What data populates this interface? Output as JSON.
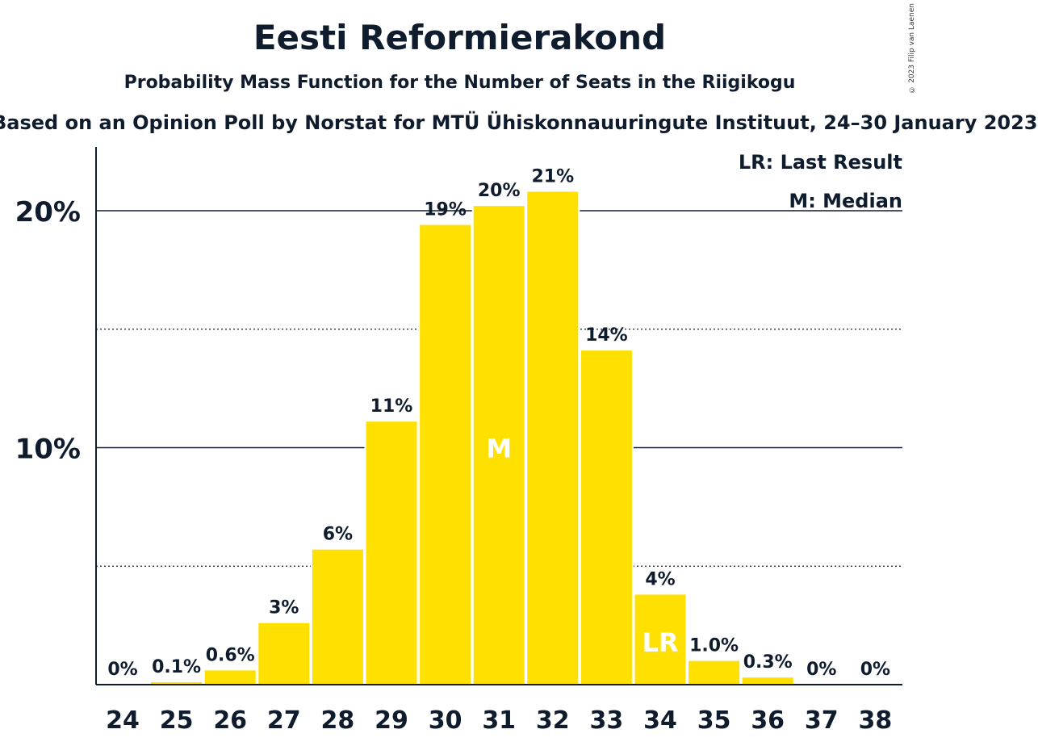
{
  "header": {
    "title": "Eesti Reformierakond",
    "subtitle": "Probability Mass Function for the Number of Seats in the Riigikogu",
    "source": "Based on an Opinion Poll by Norstat for MTÜ Ühiskonnauuringute Instituut, 24–30 January 2023",
    "copyright": "© 2023 Filip van Laenen"
  },
  "legend": {
    "last_result": "LR: Last Result",
    "median": "M: Median"
  },
  "colors": {
    "bar": "#ffe000",
    "text": "#0f1c2e",
    "marker_text": "#ffffff"
  },
  "chart_data": {
    "type": "bar",
    "title": "Eesti Reformierakond",
    "subtitle": "Probability Mass Function for the Number of Seats in the Riigikogu",
    "categories": [
      "24",
      "25",
      "26",
      "27",
      "28",
      "29",
      "30",
      "31",
      "32",
      "33",
      "34",
      "35",
      "36",
      "37",
      "38"
    ],
    "values": [
      0,
      0.1,
      0.6,
      2.6,
      5.7,
      11.1,
      19.4,
      20.2,
      20.8,
      14.1,
      3.8,
      1.0,
      0.3,
      0,
      0
    ],
    "data_labels": [
      "0%",
      "0.1%",
      "0.6%",
      "3%",
      "6%",
      "11%",
      "19%",
      "20%",
      "21%",
      "14%",
      "4%",
      "1.0%",
      "0.3%",
      "0%",
      "0%"
    ],
    "y_ticks": [
      {
        "value": 10,
        "label": "10%"
      },
      {
        "value": 20,
        "label": "20%"
      }
    ],
    "y_minor_ticks": [
      5,
      15
    ],
    "ylim": [
      0,
      22.7
    ],
    "median_category": "31",
    "median_label": "M",
    "last_result_category": "34",
    "last_result_label": "LR",
    "legend_position": "top-right"
  }
}
